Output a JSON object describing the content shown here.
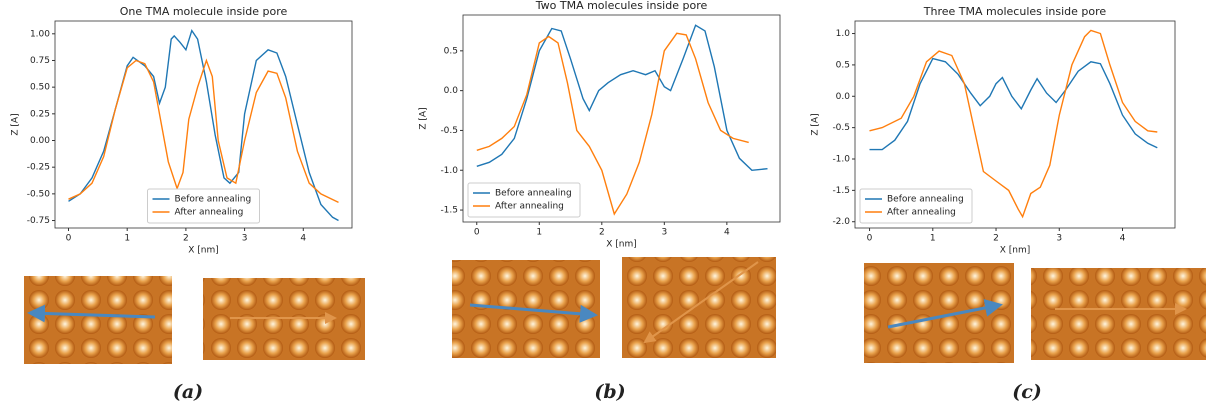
{
  "chart_data": [
    {
      "type": "line",
      "title": "One TMA molecule inside pore",
      "xlabel": "X [nm]",
      "ylabel": "Z [A]",
      "caption": "(a)",
      "legend": "lower center",
      "xlim": [
        -0.23,
        4.83
      ],
      "xticks": [
        0,
        1,
        2,
        3,
        4
      ],
      "ylim": [
        -0.82,
        1.12
      ],
      "yticks": [
        -0.75,
        {
          "value": -0.5,
          "label": "-0.50"
        },
        -0.25,
        {
          "value": 0,
          "label": "0.00"
        },
        0.25,
        {
          "value": 0.5,
          "label": "0.50"
        },
        0.75,
        {
          "value": 1,
          "label": "1.00"
        }
      ],
      "series": [
        {
          "name": "Before annealing",
          "color": "#1f77b4",
          "x": [
            0,
            0.2,
            0.4,
            0.6,
            0.8,
            1.0,
            1.1,
            1.3,
            1.45,
            1.55,
            1.65,
            1.75,
            1.8,
            1.9,
            2.0,
            2.1,
            2.2,
            2.35,
            2.5,
            2.65,
            2.75,
            2.9,
            3.0,
            3.2,
            3.4,
            3.55,
            3.7,
            3.9,
            4.1,
            4.3,
            4.5,
            4.6
          ],
          "values": [
            -0.57,
            -0.5,
            -0.35,
            -0.1,
            0.3,
            0.7,
            0.78,
            0.7,
            0.6,
            0.35,
            0.5,
            0.95,
            0.98,
            0.92,
            0.85,
            1.03,
            0.95,
            0.55,
            0.05,
            -0.35,
            -0.4,
            -0.3,
            0.25,
            0.75,
            0.85,
            0.82,
            0.6,
            0.15,
            -0.3,
            -0.6,
            -0.72,
            -0.75
          ]
        },
        {
          "name": "After annealing",
          "color": "#ff7f0e",
          "x": [
            0,
            0.2,
            0.4,
            0.6,
            0.8,
            1.0,
            1.15,
            1.3,
            1.45,
            1.6,
            1.7,
            1.85,
            1.95,
            2.05,
            2.2,
            2.35,
            2.45,
            2.55,
            2.7,
            2.85,
            3.0,
            3.2,
            3.4,
            3.55,
            3.7,
            3.9,
            4.1,
            4.3,
            4.6
          ],
          "values": [
            -0.55,
            -0.5,
            -0.4,
            -0.15,
            0.3,
            0.68,
            0.75,
            0.72,
            0.55,
            0.1,
            -0.2,
            -0.45,
            -0.3,
            0.2,
            0.5,
            0.75,
            0.6,
            0.0,
            -0.35,
            -0.4,
            0.0,
            0.45,
            0.65,
            0.63,
            0.4,
            -0.1,
            -0.4,
            -0.5,
            -0.58
          ]
        }
      ]
    },
    {
      "type": "line",
      "title": "Two TMA molecules inside pore",
      "xlabel": "X [nm]",
      "ylabel": "Z [A]",
      "caption": "(b)",
      "legend": "lower left",
      "xlim": [
        -0.22,
        4.85
      ],
      "xticks": [
        0,
        1,
        2,
        3,
        4
      ],
      "ylim": [
        -1.65,
        0.95
      ],
      "yticks": [
        -1.5,
        {
          "value": -1,
          "label": "-1.0"
        },
        -0.5,
        {
          "value": 0,
          "label": "0.0"
        },
        0.5
      ],
      "series": [
        {
          "name": "Before annealing",
          "color": "#1f77b4",
          "x": [
            0,
            0.2,
            0.4,
            0.6,
            0.8,
            1.0,
            1.2,
            1.35,
            1.5,
            1.7,
            1.8,
            1.95,
            2.1,
            2.3,
            2.5,
            2.7,
            2.85,
            3.0,
            3.1,
            3.3,
            3.5,
            3.65,
            3.8,
            4.0,
            4.2,
            4.4,
            4.65
          ],
          "values": [
            -0.95,
            -0.9,
            -0.8,
            -0.6,
            -0.1,
            0.5,
            0.78,
            0.75,
            0.4,
            -0.1,
            -0.25,
            0.0,
            0.1,
            0.2,
            0.25,
            0.2,
            0.25,
            0.05,
            0.0,
            0.4,
            0.82,
            0.75,
            0.3,
            -0.5,
            -0.85,
            -1.0,
            -0.98
          ]
        },
        {
          "name": "After annealing",
          "color": "#ff7f0e",
          "x": [
            0,
            0.2,
            0.4,
            0.6,
            0.8,
            1.0,
            1.15,
            1.3,
            1.45,
            1.6,
            1.8,
            2.0,
            2.2,
            2.4,
            2.6,
            2.8,
            3.0,
            3.2,
            3.35,
            3.5,
            3.7,
            3.9,
            4.1,
            4.35
          ],
          "values": [
            -0.75,
            -0.7,
            -0.6,
            -0.45,
            -0.05,
            0.6,
            0.68,
            0.6,
            0.1,
            -0.5,
            -0.7,
            -1.0,
            -1.55,
            -1.3,
            -0.9,
            -0.3,
            0.5,
            0.72,
            0.7,
            0.4,
            -0.15,
            -0.5,
            -0.6,
            -0.65
          ]
        }
      ]
    },
    {
      "type": "line",
      "title": "Three TMA molecules inside pore",
      "xlabel": "X [nm]",
      "ylabel": "Z [A]",
      "caption": "(c)",
      "legend": "lower left",
      "xlim": [
        -0.23,
        4.83
      ],
      "xticks": [
        0,
        1,
        2,
        3,
        4
      ],
      "ylim": [
        -2.1,
        1.2
      ],
      "yticks": [
        {
          "value": -2,
          "label": "-2.0"
        },
        -1.5,
        {
          "value": -1,
          "label": "-1.0"
        },
        -0.5,
        {
          "value": 0,
          "label": "0.0"
        },
        0.5,
        {
          "value": 1,
          "label": "1.0"
        }
      ],
      "series": [
        {
          "name": "Before annealing",
          "color": "#1f77b4",
          "x": [
            0,
            0.2,
            0.4,
            0.6,
            0.8,
            1.0,
            1.2,
            1.4,
            1.6,
            1.75,
            1.9,
            2.0,
            2.1,
            2.25,
            2.4,
            2.55,
            2.65,
            2.8,
            2.95,
            3.1,
            3.3,
            3.5,
            3.65,
            3.8,
            4.0,
            4.2,
            4.4,
            4.55
          ],
          "values": [
            -0.85,
            -0.85,
            -0.7,
            -0.4,
            0.2,
            0.6,
            0.55,
            0.35,
            0.05,
            -0.15,
            0.0,
            0.2,
            0.3,
            0.0,
            -0.2,
            0.1,
            0.28,
            0.05,
            -0.1,
            0.1,
            0.4,
            0.55,
            0.52,
            0.2,
            -0.3,
            -0.6,
            -0.75,
            -0.82
          ]
        },
        {
          "name": "After annealing",
          "color": "#ff7f0e",
          "x": [
            0,
            0.2,
            0.5,
            0.7,
            0.9,
            1.1,
            1.3,
            1.5,
            1.65,
            1.8,
            2.0,
            2.2,
            2.35,
            2.42,
            2.55,
            2.7,
            2.85,
            3.0,
            3.2,
            3.4,
            3.5,
            3.65,
            3.8,
            4.0,
            4.2,
            4.4,
            4.55
          ],
          "values": [
            -0.55,
            -0.5,
            -0.35,
            0.0,
            0.55,
            0.72,
            0.65,
            0.2,
            -0.5,
            -1.2,
            -1.35,
            -1.5,
            -1.8,
            -1.92,
            -1.55,
            -1.45,
            -1.1,
            -0.3,
            0.5,
            0.95,
            1.05,
            1.0,
            0.5,
            -0.1,
            -0.4,
            -0.55,
            -0.57
          ]
        }
      ]
    }
  ]
}
